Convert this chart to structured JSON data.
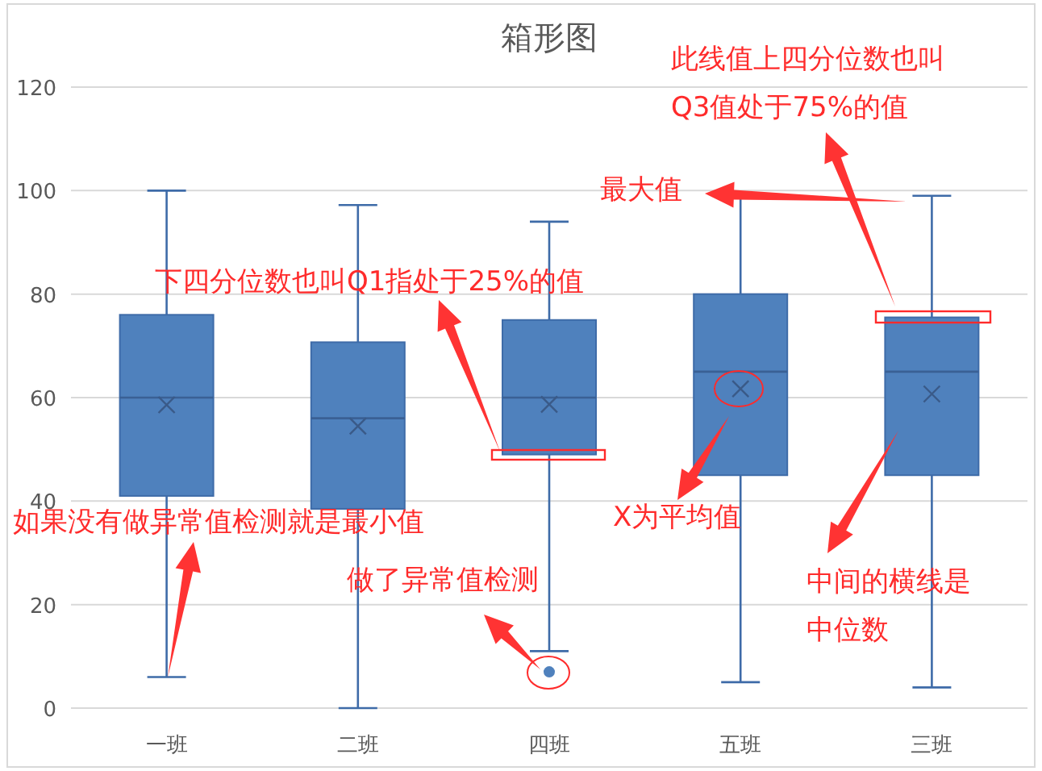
{
  "chart_data": {
    "type": "box",
    "title": "箱形图",
    "categories": [
      "一班",
      "二班",
      "四班",
      "五班",
      "三班"
    ],
    "boxes": [
      {
        "low": 6,
        "q1": 41,
        "median": 60,
        "q3": 76,
        "high": 100,
        "mean": 58.6
      },
      {
        "low": 0,
        "q1": 38.5,
        "median": 56,
        "q3": 70.7,
        "high": 97.2,
        "mean": 54.5
      },
      {
        "low": 11,
        "q1": 49,
        "median": 60,
        "q3": 75,
        "high": 94,
        "mean": 58.7,
        "outliers": [
          7
        ]
      },
      {
        "low": 5,
        "q1": 45,
        "median": 65,
        "q3": 80,
        "high": 99,
        "mean": 61.7
      },
      {
        "low": 4,
        "q1": 45,
        "median": 65,
        "q3": 75.5,
        "high": 99,
        "mean": 60.7
      }
    ],
    "color": "#4f81bd",
    "ylim": [
      0,
      120
    ],
    "yticks": [
      0,
      20,
      40,
      60,
      80,
      100,
      120
    ],
    "grid": "y",
    "annotations": [
      "此线值上四分位数也叫Q3值处于75%的值",
      "最大值",
      "下四分位数也叫Q1指处于25%的值",
      "如果没有做异常值检测就是最小值",
      "做了异常值检测",
      "X为平均值",
      "中间的横线是中位数"
    ]
  }
}
